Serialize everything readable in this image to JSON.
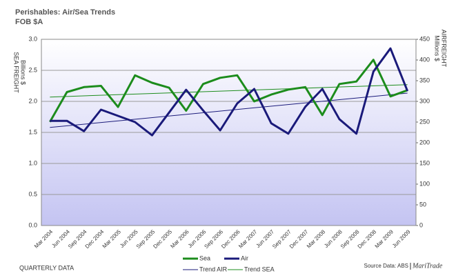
{
  "chart_data": {
    "type": "line",
    "title": "Perishables: Air/Sea Trends",
    "subtitle": "FOB $A",
    "y_label": [
      "SEA FREIGHT",
      "Billions $"
    ],
    "y2_label": [
      "AIRFREIGHT",
      "Millions $"
    ],
    "footer": "QUARTERLY DATA",
    "source": "Source Data: ABS",
    "source_brand": "MariTrade",
    "categories": [
      "Mar 2004",
      "Jun 2004",
      "Sep 2004",
      "Dec 2004",
      "Mar 2005",
      "Jun 2005",
      "Sep 2005",
      "Dec 2005",
      "Mar 2006",
      "Jun 2006",
      "Sep 2006",
      "Dec 2006",
      "Mar 2007",
      "Jun 2007",
      "Sep 2007",
      "Dec 2007",
      "Mar 2008",
      "Jun 2008",
      "Sep 2008",
      "Dec 2008",
      "Mar 2009",
      "Jun 2009"
    ],
    "series": [
      {
        "name": "Sea",
        "color": "#1c8c1c",
        "axis": "y",
        "values": [
          1.67,
          2.15,
          2.23,
          2.25,
          1.91,
          2.42,
          2.3,
          2.22,
          1.85,
          2.28,
          2.38,
          2.42,
          2.0,
          2.11,
          2.19,
          2.23,
          1.78,
          2.28,
          2.32,
          2.67,
          2.08,
          2.18
        ]
      },
      {
        "name": "Air",
        "color": "#1a1a7a",
        "axis": "y2",
        "values": [
          253,
          253,
          228,
          280,
          265,
          250,
          218,
          273,
          328,
          278,
          230,
          295,
          330,
          247,
          222,
          287,
          330,
          257,
          222,
          372,
          428,
          325
        ]
      }
    ],
    "trends": [
      {
        "name": "Trend AIR",
        "color": "#1a1a7a",
        "axis": "y2",
        "start": 237,
        "end": 320
      },
      {
        "name": "Trend SEA",
        "color": "#1c8c1c",
        "axis": "y",
        "start": 2.07,
        "end": 2.27
      }
    ],
    "ylim": [
      0,
      3
    ],
    "yticks": [
      {
        "value": 0,
        "label": "0.0"
      },
      0.5,
      {
        "value": 1,
        "label": "1.0"
      },
      1.5,
      {
        "value": 2,
        "label": "2.0"
      },
      2.5,
      {
        "value": 3,
        "label": "3.0"
      }
    ],
    "y2lim": [
      0,
      450
    ],
    "y2ticks": [
      0,
      50,
      100,
      150,
      200,
      250,
      300,
      350,
      400,
      450
    ],
    "grid": true
  }
}
